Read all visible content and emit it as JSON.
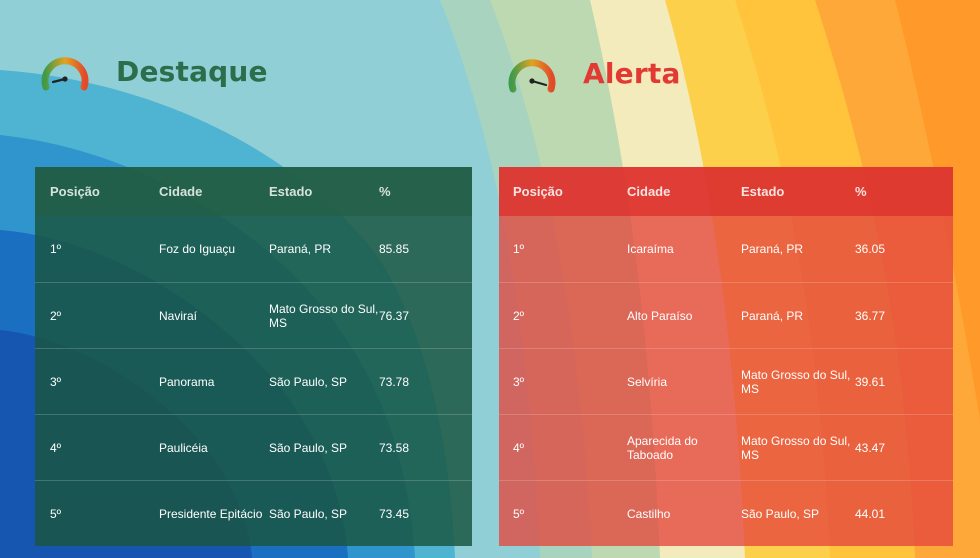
{
  "highlight": {
    "title": "Destaque",
    "icon": "gauge-icon",
    "headers": [
      "Posição",
      "Cidade",
      "Estado",
      "%"
    ],
    "rows": [
      {
        "position": "1º",
        "city": "Foz do Iguaçu",
        "state": "Paraná, PR",
        "percent": "85.85"
      },
      {
        "position": "2º",
        "city": "Naviraí",
        "state": "Mato Grosso do Sul, MS",
        "percent": "76.37"
      },
      {
        "position": "3º",
        "city": "Panorama",
        "state": "São Paulo, SP",
        "percent": "73.78"
      },
      {
        "position": "4º",
        "city": "Paulicéia",
        "state": "São Paulo, SP",
        "percent": "73.58"
      },
      {
        "position": "5º",
        "city": "Presidente Epitácio",
        "state": "São Paulo, SP",
        "percent": "73.45"
      }
    ]
  },
  "alert": {
    "title": "Alerta",
    "icon": "gauge-icon",
    "headers": [
      "Posição",
      "Cidade",
      "Estado",
      "%"
    ],
    "rows": [
      {
        "position": "1º",
        "city": "Icaraíma",
        "state": "Paraná, PR",
        "percent": "36.05"
      },
      {
        "position": "2º",
        "city": "Alto Paraíso",
        "state": "Paraná, PR",
        "percent": "36.77"
      },
      {
        "position": "3º",
        "city": "Selvíria",
        "state": "Mato Grosso do Sul, MS",
        "percent": "39.61"
      },
      {
        "position": "4º",
        "city": "Aparecida do Taboado",
        "state": "Mato Grosso do Sul, MS",
        "percent": "43.47"
      },
      {
        "position": "5º",
        "city": "Castilho",
        "state": "São Paulo, SP",
        "percent": "44.01"
      }
    ]
  },
  "colors": {
    "highlight_title": "#2c6e4c",
    "alert_title": "#e23a33"
  }
}
